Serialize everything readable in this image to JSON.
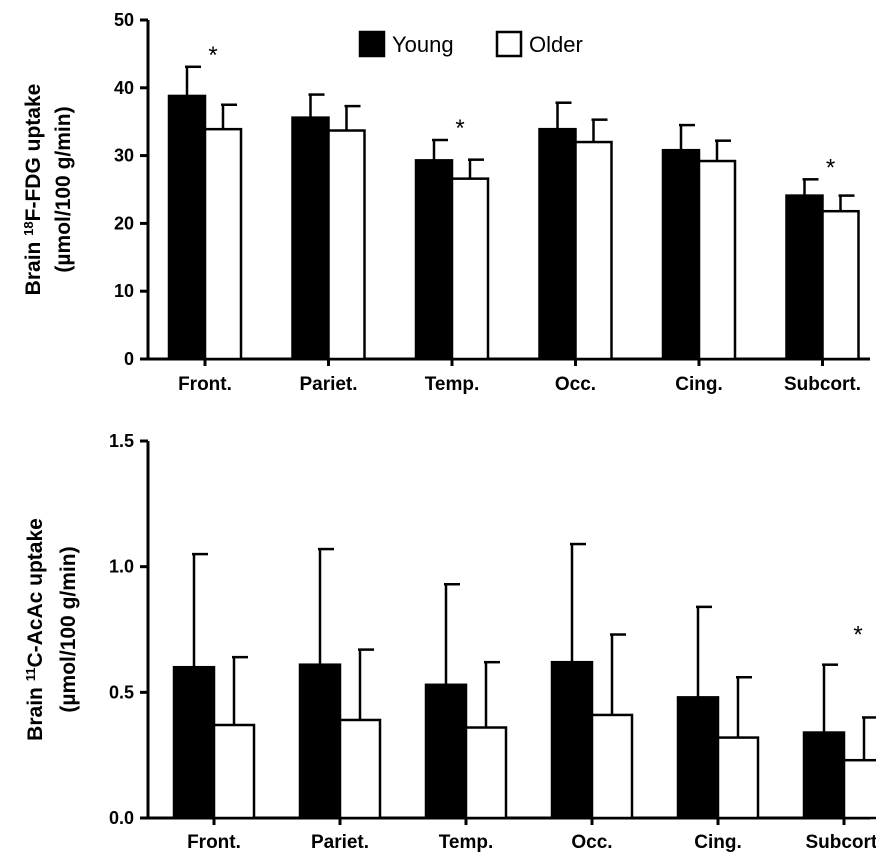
{
  "chart_data": [
    {
      "type": "bar",
      "categories": [
        "Front.",
        "Pariet.",
        "Temp.",
        "Occ.",
        "Cing.",
        "Subcort."
      ],
      "series": [
        {
          "name": "Young",
          "values": [
            38.8,
            35.6,
            29.3,
            33.9,
            30.8,
            24.1
          ],
          "errors": [
            4.3,
            3.4,
            3.0,
            3.9,
            3.7,
            2.4
          ],
          "color": "#000000"
        },
        {
          "name": "Older",
          "values": [
            33.9,
            33.7,
            26.6,
            32.0,
            29.2,
            21.8
          ],
          "errors": [
            3.6,
            3.6,
            2.8,
            3.3,
            3.0,
            2.3
          ],
          "color": "#ffffff"
        }
      ],
      "ylabel_prefix": "Brain ",
      "ylabel_sup": "18",
      "ylabel_suffix": "F-FDG uptake",
      "ylabel_line2": "(µmol/100 g/min)",
      "ylim": [
        0,
        50
      ],
      "yticks": [
        "0",
        "10",
        "20",
        "30",
        "40",
        "50"
      ],
      "legend_position": "top-center",
      "significance_marker": "*",
      "significant_categories": [
        "Front.",
        "Temp.",
        "Subcort."
      ],
      "grid": false
    },
    {
      "type": "bar",
      "categories": [
        "Front.",
        "Pariet.",
        "Temp.",
        "Occ.",
        "Cing.",
        "Subcort."
      ],
      "series": [
        {
          "name": "Young",
          "values": [
            0.6,
            0.61,
            0.53,
            0.62,
            0.48,
            0.34
          ],
          "errors": [
            0.45,
            0.46,
            0.4,
            0.47,
            0.36,
            0.27
          ],
          "color": "#000000"
        },
        {
          "name": "Older",
          "values": [
            0.37,
            0.39,
            0.36,
            0.41,
            0.32,
            0.23
          ],
          "errors": [
            0.27,
            0.28,
            0.26,
            0.32,
            0.24,
            0.17
          ],
          "color": "#ffffff"
        }
      ],
      "ylabel_prefix": "Brain ",
      "ylabel_sup": "11",
      "ylabel_suffix": "C-AcAc uptake",
      "ylabel_line2": "(µmol/100 g/min)",
      "ylim": [
        0,
        1.5
      ],
      "yticks": [
        "0.0",
        "0.5",
        "1.0",
        "1.5"
      ],
      "significance_marker": "*",
      "significant_categories": [
        "Subcort."
      ],
      "grid": false
    }
  ]
}
